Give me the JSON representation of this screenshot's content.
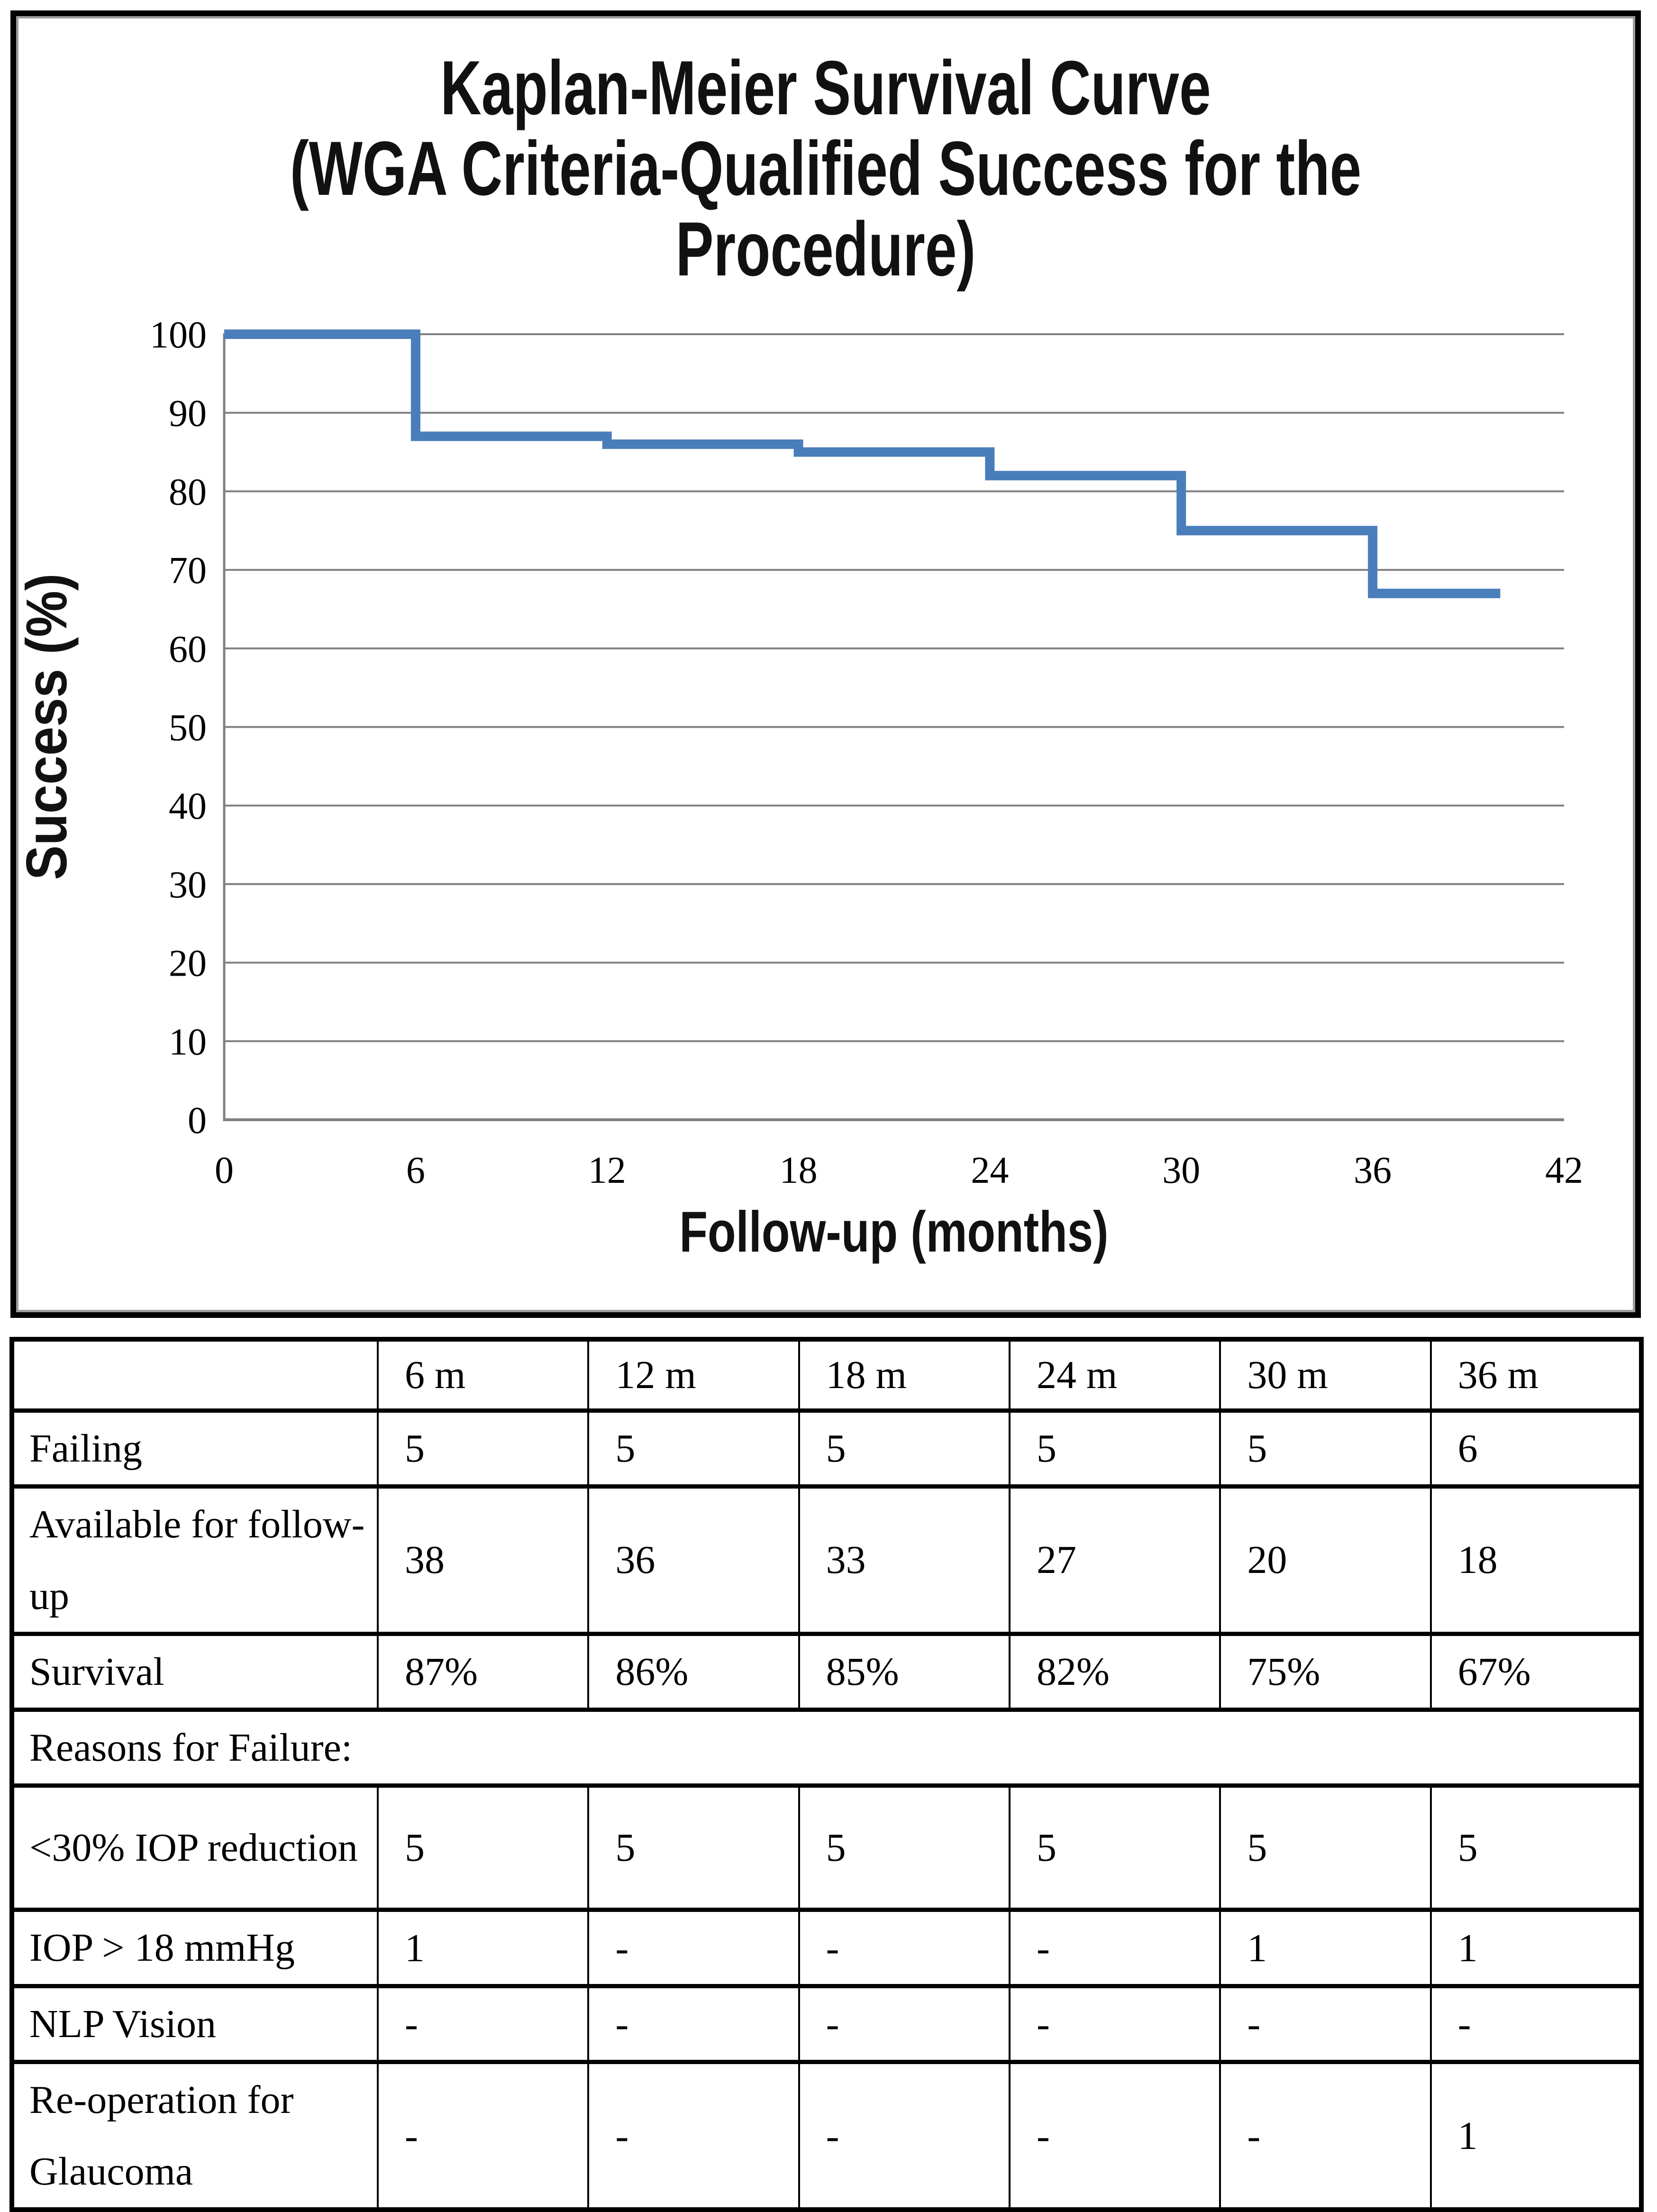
{
  "chart": {
    "title_lines": [
      "Kaplan-Meier Survival Curve",
      "(WGA Criteria-Qualified Success for the",
      "Procedure)"
    ],
    "frame_color": "#000000",
    "inner_border_color": "#9c9c9c",
    "grid_color": "#808080",
    "axis_color": "#808080",
    "line_color": "#4A7EBB"
  },
  "chart_data": {
    "type": "line",
    "step": true,
    "title": "Kaplan-Meier Survival Curve (WGA Criteria-Qualified Success for the Procedure)",
    "xlabel": "Follow-up (months)",
    "ylabel": "Success (%)",
    "xlim": [
      0,
      42
    ],
    "ylim": [
      0,
      100
    ],
    "x_ticks": [
      0,
      6,
      12,
      18,
      24,
      30,
      36,
      42
    ],
    "y_ticks": [
      0,
      10,
      20,
      30,
      40,
      50,
      60,
      70,
      80,
      90,
      100
    ],
    "grid": true,
    "legend": false,
    "series": [
      {
        "name": "WGA Criteria-Qualified Success",
        "color": "#4A7EBB",
        "points": [
          [
            0,
            100
          ],
          [
            6,
            100
          ],
          [
            6,
            87
          ],
          [
            12,
            87
          ],
          [
            12,
            86
          ],
          [
            18,
            86
          ],
          [
            18,
            85
          ],
          [
            24,
            85
          ],
          [
            24,
            82
          ],
          [
            30,
            82
          ],
          [
            30,
            75
          ],
          [
            36,
            75
          ],
          [
            36,
            67
          ],
          [
            40,
            67
          ]
        ]
      }
    ]
  },
  "table": {
    "header": [
      "",
      "6 m",
      "12 m",
      "18 m",
      "24 m",
      "30 m",
      "36 m"
    ],
    "rows": [
      {
        "label": "Failing",
        "span": false,
        "values": [
          "5",
          "5",
          "5",
          "5",
          "5",
          "6"
        ]
      },
      {
        "label": "Available for follow-up",
        "span": false,
        "values": [
          "38",
          "36",
          "33",
          "27",
          "20",
          "18"
        ]
      },
      {
        "label": "Survival",
        "span": false,
        "values": [
          "87%",
          "86%",
          "85%",
          "82%",
          "75%",
          "67%"
        ]
      },
      {
        "label": "Reasons for Failure:",
        "span": true,
        "values": []
      },
      {
        "label": "<30% IOP reduction",
        "span": false,
        "values": [
          "5",
          "5",
          "5",
          "5",
          "5",
          "5"
        ]
      },
      {
        "label": "IOP > 18 mmHg",
        "span": false,
        "values": [
          "1",
          "-",
          "-",
          "-",
          "1",
          "1"
        ]
      },
      {
        "label": "NLP Vision",
        "span": false,
        "values": [
          "-",
          "-",
          "-",
          "-",
          "-",
          "-"
        ]
      },
      {
        "label": "Re-operation for Glaucoma",
        "span": false,
        "values": [
          "-",
          "-",
          "-",
          "-",
          "-",
          "1"
        ]
      }
    ]
  }
}
